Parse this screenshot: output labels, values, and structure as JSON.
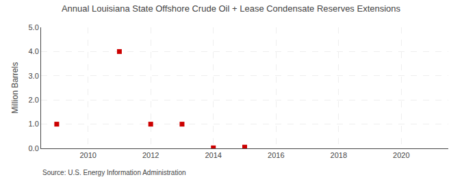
{
  "chart_data": {
    "type": "scatter",
    "title": "Annual Louisiana State Offshore Crude Oil + Lease Condensate Reserves Extensions",
    "ylabel": "Million Barrels",
    "annotations": [
      "Source: U.S. Energy Information Administration"
    ],
    "x": [
      2009,
      2011,
      2012,
      2013,
      2014,
      2015
    ],
    "values": [
      1.0,
      4.0,
      1.0,
      1.0,
      0.02,
      0.05
    ],
    "color": "#cc0000",
    "marker": "square",
    "xlim": [
      2008.5,
      2021.5
    ],
    "xticks": [
      2010,
      2012,
      2014,
      2016,
      2018,
      2020
    ],
    "ylim": [
      0.0,
      5.0
    ],
    "yticks": [
      {
        "value": 0.0,
        "label": "0.0"
      },
      {
        "value": 1.0,
        "label": "1.0"
      },
      {
        "value": 2.0,
        "label": "2.0"
      },
      {
        "value": 3.0,
        "label": "3.0"
      },
      {
        "value": 4.0,
        "label": "4.0"
      },
      {
        "value": 5.0,
        "label": "5.0"
      }
    ],
    "grid": true
  }
}
